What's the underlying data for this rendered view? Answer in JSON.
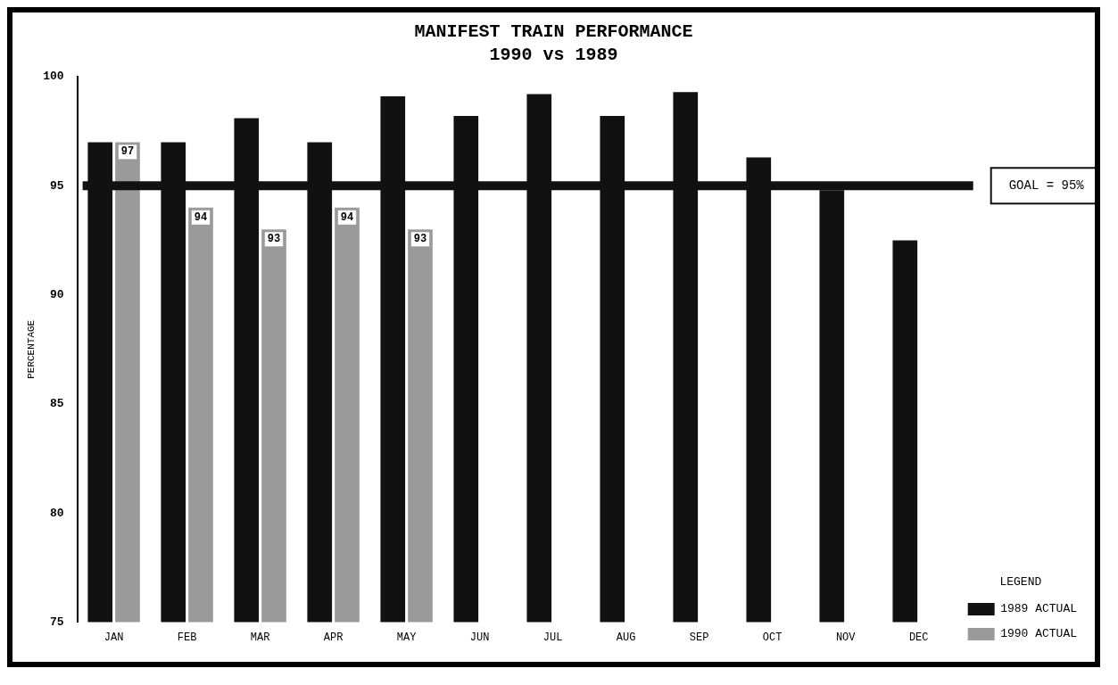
{
  "chart_data": {
    "type": "bar",
    "title": "MANIFEST TRAIN PERFORMANCE",
    "subtitle": "1990 vs 1989",
    "ylabel": "PERCENTAGE",
    "categories": [
      "JAN",
      "FEB",
      "MAR",
      "APR",
      "MAY",
      "JUN",
      "JUL",
      "AUG",
      "SEP",
      "OCT",
      "NOV",
      "DEC"
    ],
    "series": [
      {
        "name": "1989 ACTUAL",
        "color": "#111111",
        "values": [
          97,
          97,
          98.1,
          97,
          99.1,
          98.2,
          99.2,
          98.2,
          99.3,
          96.3,
          94.8,
          92.5
        ]
      },
      {
        "name": "1990 ACTUAL",
        "color": "#9a9a9a",
        "values": [
          97,
          94,
          93,
          94,
          93,
          null,
          null,
          null,
          null,
          null,
          null,
          null
        ],
        "value_labels": [
          "97",
          "94",
          "93",
          "94",
          "93",
          null,
          null,
          null,
          null,
          null,
          null,
          null
        ]
      }
    ],
    "ylim": [
      75,
      100
    ],
    "yticks": [
      75,
      80,
      85,
      90,
      95,
      100
    ],
    "grid": false,
    "legend": "bottom right",
    "legend_title": "LEGEND",
    "ref_lines": [
      {
        "axis": "y",
        "value": 95,
        "label": "GOAL = 95%",
        "color": "#111111"
      }
    ]
  }
}
